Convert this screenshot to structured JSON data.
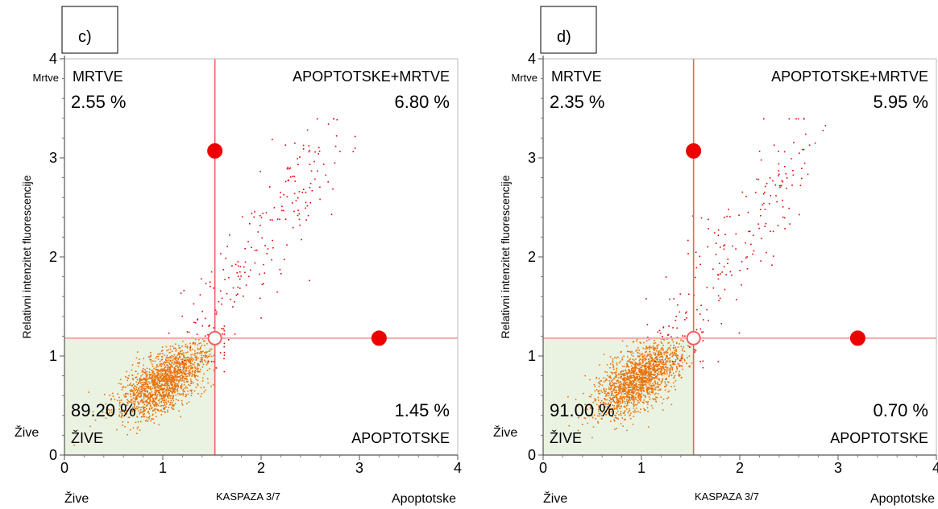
{
  "chart_data": [
    {
      "type": "scatter",
      "panel_label": "c)",
      "xlabel": "KASPAZA 3/7",
      "ylabel": "Relativni intenzitet fluorescencije",
      "xlim": [
        0,
        4
      ],
      "ylim": [
        0,
        4
      ],
      "xticks": [
        "0",
        "1",
        "2",
        "3",
        "4"
      ],
      "yticks": [
        "0",
        "1",
        "2",
        "3",
        "4"
      ],
      "x_left_label": "Žive",
      "x_right_label": "Apoptotske",
      "y_bottom_label": "Žive",
      "y_top_label": "Mrtve",
      "gate": {
        "x": 1.53,
        "y": 1.18
      },
      "handles": [
        {
          "x": 1.53,
          "y": 3.07,
          "filled": true
        },
        {
          "x": 3.2,
          "y": 1.18,
          "filled": true
        },
        {
          "x": 1.53,
          "y": 1.18,
          "filled": false
        }
      ],
      "quadrants": {
        "top_left": {
          "name": "MRTVE",
          "percent": "2.55 %"
        },
        "top_right": {
          "name": "APOPTOTSKE+MRTVE",
          "percent": "6.80 %"
        },
        "bottom_left": {
          "name": "ŽIVE",
          "percent": "89.20 %"
        },
        "bottom_right": {
          "name": "APOPTOTSKE",
          "percent": "1.45 %"
        }
      },
      "live_cluster": {
        "center": [
          1.0,
          0.75
        ],
        "spread": [
          0.23,
          0.15
        ],
        "count": 1600
      },
      "dying_population": {
        "count": 200
      }
    },
    {
      "type": "scatter",
      "panel_label": "d)",
      "xlabel": "KASPAZA 3/7",
      "ylabel": "Relativni intenzitet fluorescencije",
      "xlim": [
        0,
        4
      ],
      "ylim": [
        0,
        4
      ],
      "xticks": [
        "0",
        "1",
        "2",
        "3",
        "4"
      ],
      "yticks": [
        "0",
        "1",
        "2",
        "3",
        "4"
      ],
      "x_left_label": "Žive",
      "x_right_label": "Apoptotske",
      "y_bottom_label": "Žive",
      "y_top_label": "Mrtve",
      "gate": {
        "x": 1.53,
        "y": 1.18
      },
      "handles": [
        {
          "x": 1.53,
          "y": 3.07,
          "filled": true
        },
        {
          "x": 3.2,
          "y": 1.18,
          "filled": true
        },
        {
          "x": 1.53,
          "y": 1.18,
          "filled": false
        }
      ],
      "quadrants": {
        "top_left": {
          "name": "MRTVE",
          "percent": "2.35 %"
        },
        "top_right": {
          "name": "APOPTOTSKE+MRTVE",
          "percent": "5.95 %"
        },
        "bottom_left": {
          "name": "ŽIVE",
          "percent": "91.00 %"
        },
        "bottom_right": {
          "name": "APOPTOTSKE",
          "percent": "0.70 %"
        }
      },
      "live_cluster": {
        "center": [
          0.98,
          0.78
        ],
        "spread": [
          0.23,
          0.15
        ],
        "count": 1650
      },
      "dying_population": {
        "count": 180
      }
    }
  ],
  "colors": {
    "live_points": "#e8720c",
    "dead_points": "#e00000",
    "gate_line": "#f06060",
    "gate_line_light": "#f4a8a8",
    "live_region": "#eaf3e2",
    "handle": "#ee0000"
  }
}
